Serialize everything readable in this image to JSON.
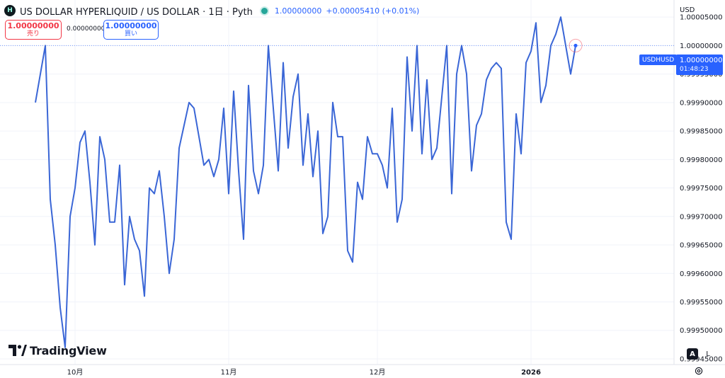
{
  "legend": {
    "logo_glyph": "H",
    "title": "US DOLLAR HYPERLIQUID / US DOLLAR · 1日 · Pyth",
    "last_price": "1.00000000",
    "change": "+0.00005410 (+0.01%)",
    "status_color": "#26a69a",
    "logo_icon": "hyperliquid-logo-icon"
  },
  "trade": {
    "sell_price": "1.00000000",
    "sell_label": "売り",
    "spread": "0.00000000",
    "buy_price": "1.00000000",
    "buy_label": "買い",
    "sell_color": "#f23645",
    "buy_color": "#2962ff"
  },
  "axis": {
    "currency": "USD",
    "symbol_tag": "USDHUSD",
    "price_tag": "1.00000000",
    "countdown": "01:48:23"
  },
  "controls": {
    "auto_label": "A",
    "log_label": "L",
    "settings_icon": "gear-icon"
  },
  "branding": {
    "name": "TradingView",
    "icon": "tradingview-logo-icon"
  },
  "chart_data": {
    "type": "line",
    "line_color": "#3a66d6",
    "grid": true,
    "last_value": 1.0,
    "ylim": [
      0.99944,
      1.00008
    ],
    "y_ticks": [
      "1.00005000",
      "1.00000000",
      "0.99995000",
      "0.99990000",
      "0.99985000",
      "0.99980000",
      "0.99975000",
      "0.99970000",
      "0.99965000",
      "0.99960000",
      "0.99955000",
      "0.99950000",
      "0.99945000"
    ],
    "x_tick_labels": [
      "10月",
      "11月",
      "12月",
      "2026"
    ],
    "x_tick_dates": [
      "2025-10-01",
      "2025-11-01",
      "2025-12-01",
      "2026-01-01"
    ],
    "x_start": "2025-09-23",
    "series": [
      {
        "points": [
          [
            "2025-09-23",
            0.9999
          ],
          [
            "2025-09-24",
            0.99995
          ],
          [
            "2025-09-25",
            1.0
          ],
          [
            "2025-09-26",
            0.99973
          ],
          [
            "2025-09-27",
            0.99965
          ],
          [
            "2025-09-28",
            0.99954
          ],
          [
            "2025-09-29",
            0.99947
          ],
          [
            "2025-09-30",
            0.9997
          ],
          [
            "2025-10-01",
            0.99975
          ],
          [
            "2025-10-02",
            0.99983
          ],
          [
            "2025-10-03",
            0.99985
          ],
          [
            "2025-10-04",
            0.99976
          ],
          [
            "2025-10-05",
            0.99965
          ],
          [
            "2025-10-06",
            0.99984
          ],
          [
            "2025-10-07",
            0.9998
          ],
          [
            "2025-10-08",
            0.99969
          ],
          [
            "2025-10-09",
            0.99969
          ],
          [
            "2025-10-10",
            0.99979
          ],
          [
            "2025-10-11",
            0.99958
          ],
          [
            "2025-10-12",
            0.9997
          ],
          [
            "2025-10-13",
            0.99966
          ],
          [
            "2025-10-14",
            0.99964
          ],
          [
            "2025-10-15",
            0.99956
          ],
          [
            "2025-10-16",
            0.99975
          ],
          [
            "2025-10-17",
            0.99974
          ],
          [
            "2025-10-18",
            0.99978
          ],
          [
            "2025-10-19",
            0.9997
          ],
          [
            "2025-10-20",
            0.9996
          ],
          [
            "2025-10-21",
            0.99966
          ],
          [
            "2025-10-22",
            0.99982
          ],
          [
            "2025-10-23",
            0.99986
          ],
          [
            "2025-10-24",
            0.9999
          ],
          [
            "2025-10-25",
            0.99989
          ],
          [
            "2025-10-26",
            0.99984
          ],
          [
            "2025-10-27",
            0.99979
          ],
          [
            "2025-10-28",
            0.9998
          ],
          [
            "2025-10-29",
            0.99977
          ],
          [
            "2025-10-30",
            0.9998
          ],
          [
            "2025-10-31",
            0.99989
          ],
          [
            "2025-11-01",
            0.99974
          ],
          [
            "2025-11-02",
            0.99992
          ],
          [
            "2025-11-03",
            0.99978
          ],
          [
            "2025-11-04",
            0.99966
          ],
          [
            "2025-11-05",
            0.99993
          ],
          [
            "2025-11-06",
            0.99978
          ],
          [
            "2025-11-07",
            0.99974
          ],
          [
            "2025-11-08",
            0.99979
          ],
          [
            "2025-11-09",
            1.0
          ],
          [
            "2025-11-10",
            0.99989
          ],
          [
            "2025-11-11",
            0.99978
          ],
          [
            "2025-11-12",
            0.99997
          ],
          [
            "2025-11-13",
            0.99982
          ],
          [
            "2025-11-14",
            0.99991
          ],
          [
            "2025-11-15",
            0.99995
          ],
          [
            "2025-11-16",
            0.99979
          ],
          [
            "2025-11-17",
            0.99988
          ],
          [
            "2025-11-18",
            0.99977
          ],
          [
            "2025-11-19",
            0.99985
          ],
          [
            "2025-11-20",
            0.99967
          ],
          [
            "2025-11-21",
            0.9997
          ],
          [
            "2025-11-22",
            0.9999
          ],
          [
            "2025-11-23",
            0.99984
          ],
          [
            "2025-11-24",
            0.99984
          ],
          [
            "2025-11-25",
            0.99964
          ],
          [
            "2025-11-26",
            0.99962
          ],
          [
            "2025-11-27",
            0.99976
          ],
          [
            "2025-11-28",
            0.99973
          ],
          [
            "2025-11-29",
            0.99984
          ],
          [
            "2025-11-30",
            0.99981
          ],
          [
            "2025-12-01",
            0.99981
          ],
          [
            "2025-12-02",
            0.99979
          ],
          [
            "2025-12-03",
            0.99975
          ],
          [
            "2025-12-04",
            0.99989
          ],
          [
            "2025-12-05",
            0.99969
          ],
          [
            "2025-12-06",
            0.99973
          ],
          [
            "2025-12-07",
            0.99998
          ],
          [
            "2025-12-08",
            0.99985
          ],
          [
            "2025-12-09",
            1.0
          ],
          [
            "2025-12-10",
            0.99981
          ],
          [
            "2025-12-11",
            0.99994
          ],
          [
            "2025-12-12",
            0.9998
          ],
          [
            "2025-12-13",
            0.99982
          ],
          [
            "2025-12-14",
            0.99991
          ],
          [
            "2025-12-15",
            1.0
          ],
          [
            "2025-12-16",
            0.99974
          ],
          [
            "2025-12-17",
            0.99995
          ],
          [
            "2025-12-18",
            1.0
          ],
          [
            "2025-12-19",
            0.99995
          ],
          [
            "2025-12-20",
            0.99978
          ],
          [
            "2025-12-21",
            0.99986
          ],
          [
            "2025-12-22",
            0.99988
          ],
          [
            "2025-12-23",
            0.99994
          ],
          [
            "2025-12-24",
            0.99996
          ],
          [
            "2025-12-25",
            0.99997
          ],
          [
            "2025-12-26",
            0.99996
          ],
          [
            "2025-12-27",
            0.99969
          ],
          [
            "2025-12-28",
            0.99966
          ],
          [
            "2025-12-29",
            0.99988
          ],
          [
            "2025-12-30",
            0.99981
          ],
          [
            "2025-12-31",
            0.99997
          ],
          [
            "2026-01-01",
            0.99999
          ],
          [
            "2026-01-02",
            1.00004
          ],
          [
            "2026-01-03",
            0.9999
          ],
          [
            "2026-01-04",
            0.99993
          ],
          [
            "2026-01-05",
            1.0
          ],
          [
            "2026-01-06",
            1.00002
          ],
          [
            "2026-01-07",
            1.00005
          ],
          [
            "2026-01-08",
            1.0
          ],
          [
            "2026-01-09",
            0.99995
          ],
          [
            "2026-01-10",
            1.0
          ]
        ]
      }
    ]
  }
}
